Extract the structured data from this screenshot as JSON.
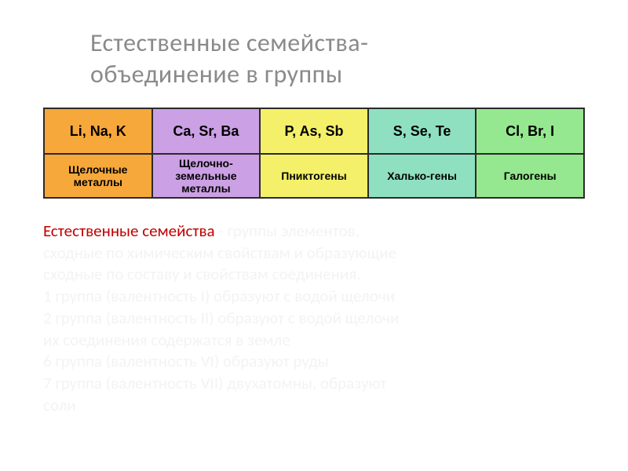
{
  "title_line1": "Естественные семейства-",
  "title_line2": "объединение в группы",
  "table": {
    "colors": {
      "c1": "#f7a83b",
      "c2": "#cba0e4",
      "c3": "#f4f06a",
      "c4": "#8fe0c0",
      "c5": "#95e88f"
    },
    "cols": [
      {
        "elements": "Li, Na, K",
        "name": "Щелочные металлы"
      },
      {
        "elements": "Ca, Sr, Ba",
        "name": "Щелочно-земельные металлы"
      },
      {
        "elements": "P, As, Sb",
        "name": "Пниктогены"
      },
      {
        "elements": "S, Se, Te",
        "name": "Халько-гены"
      },
      {
        "elements": "Cl, Br, I",
        "name": "Галогены"
      }
    ]
  },
  "paragraph": {
    "lead": "Естественные семейства",
    "rest_line1": " - группы элементов,",
    "line2": "сходные по химическим свойствам и образующие",
    "line3": "сходные по составу и свойствам соединения.",
    "line4": "1 группа (валентность I) образуют с водой щелочи",
    "line5": "2 группа (валентность II) образуют с водой щелочи",
    "line6": "их соединения содержатся в земле",
    "line7": "6 группа (валентность VI) образуют руды",
    "line8": "7 группа (валентность VII) двухатомны, образуют",
    "line9": "соли"
  }
}
